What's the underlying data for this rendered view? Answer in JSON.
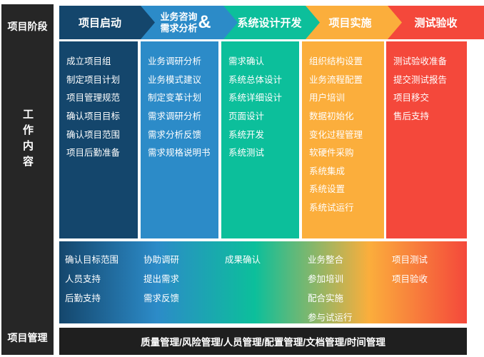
{
  "rail": {
    "phase_label": "项目阶段",
    "work_label": "工作内容",
    "mgmt_label": "项目管理"
  },
  "phases": [
    {
      "name": "项目启动",
      "color": "#14466c",
      "items": [
        "成立项目组",
        "制定项目计划",
        "项目管理规范",
        "确认项目目标",
        "确认项目范围",
        "项目后勤准备"
      ]
    },
    {
      "name_line1": "业务咨询",
      "name_line2": "需求分析",
      "suffix": "&",
      "color": "#2c8bc8",
      "items": [
        "业务调研分析",
        "业务模式建议",
        "制定变革计划",
        "需求调研分析",
        "需求分析反馈",
        "需求规格说明书"
      ]
    },
    {
      "name": "系统设计开发",
      "color": "#0cbf9b",
      "items": [
        "需求确认",
        "系统总体设计",
        "系统详细设计",
        "页面设计",
        "系统开发",
        "系统测试"
      ]
    },
    {
      "name": "项目实施",
      "color": "#fbae3c",
      "items": [
        "组织结构设置",
        "业务流程配置",
        "用户培训",
        "数据初始化",
        "变化过程管理",
        "软硬件采购",
        "系统集成",
        "系统设置",
        "系统试运行"
      ]
    },
    {
      "name": "测试验收",
      "color": "#f4483b",
      "items": [
        "测试验收准备",
        "提交测试报告",
        "项目移交",
        "售后支持"
      ]
    }
  ],
  "support_groups": [
    [
      "确认目标范围",
      "人员支持",
      "后勤支持"
    ],
    [
      "协助调研",
      "提出需求",
      "需求反馈"
    ],
    [
      "成果确认"
    ],
    [
      "业务整合",
      "参加培训",
      "配合实施",
      "参与试运行"
    ],
    [
      "项目测试",
      "项目验收"
    ]
  ],
  "management_bar": "质量管理/风险管理/人员管理/配置管理/文档管理/时间管理",
  "gradient_colors": [
    "#14466c",
    "#2c8bc8",
    "#0cbf9b",
    "#fbae3c",
    "#f4483b"
  ]
}
